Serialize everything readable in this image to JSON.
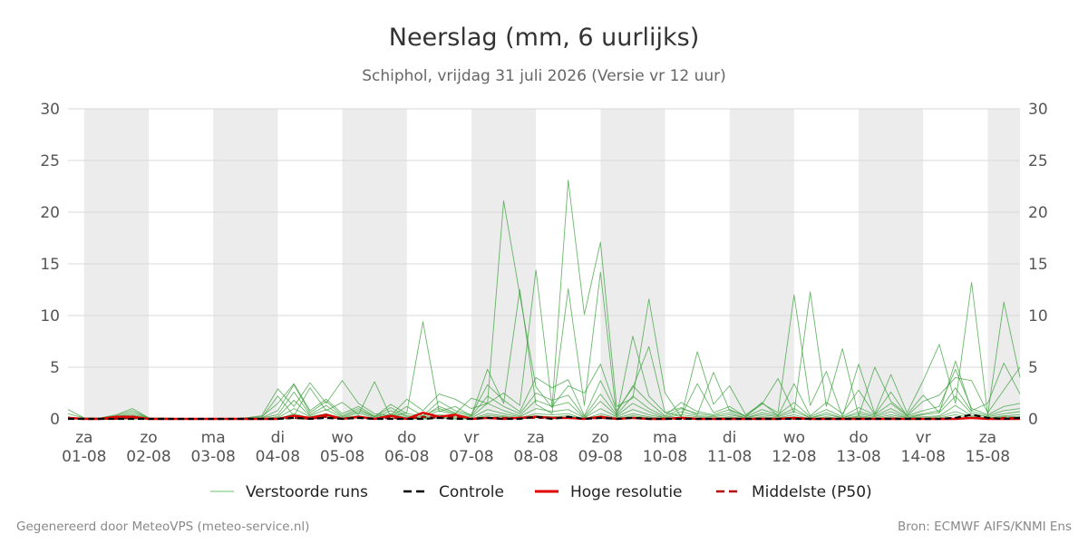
{
  "header": {
    "title": "Neerslag (mm, 6 uurlijks)",
    "subtitle": "Schiphol, vrijdag 31 juli 2026 (Versie vr 12 uur)"
  },
  "footer": {
    "left": "Gegenereerd door MeteoVPS (meteo-service.nl)",
    "right": "Bron: ECMWF AIFS/KNMI Ens"
  },
  "legend": [
    {
      "label": "Verstoorde runs",
      "color": "#4caf50",
      "style": "thin-solid"
    },
    {
      "label": "Controle",
      "color": "#000000",
      "style": "dashed"
    },
    {
      "label": "Hoge resolutie",
      "color": "#e00000",
      "style": "solid"
    },
    {
      "label": "Middelste (P50)",
      "color": "#b00000",
      "style": "dashed"
    }
  ],
  "chart_data": {
    "type": "line",
    "title": "Neerslag (mm, 6 uurlijks)",
    "subtitle": "Schiphol, vrijdag 31 juli 2026 (Versie vr 12 uur)",
    "x_unit": "days, day 0 = za 01-08 00:00",
    "xlim": [
      -0.25,
      14.5
    ],
    "ylim": [
      0,
      30
    ],
    "yticks": [
      0,
      5,
      10,
      15,
      20,
      25,
      30
    ],
    "grid": true,
    "legend_position": "bottom",
    "day_labels": [
      {
        "day": "za",
        "date": "01-08"
      },
      {
        "day": "zo",
        "date": "02-08"
      },
      {
        "day": "ma",
        "date": "03-08"
      },
      {
        "day": "di",
        "date": "04-08"
      },
      {
        "day": "wo",
        "date": "05-08"
      },
      {
        "day": "do",
        "date": "06-08"
      },
      {
        "day": "vr",
        "date": "07-08"
      },
      {
        "day": "za",
        "date": "08-08"
      },
      {
        "day": "zo",
        "date": "09-08"
      },
      {
        "day": "ma",
        "date": "10-08"
      },
      {
        "day": "di",
        "date": "11-08"
      },
      {
        "day": "wo",
        "date": "12-08"
      },
      {
        "day": "do",
        "date": "13-08"
      },
      {
        "day": "vr",
        "date": "14-08"
      },
      {
        "day": "za",
        "date": "15-08"
      }
    ],
    "shaded_days": [
      0,
      2,
      4,
      6,
      8,
      10,
      12,
      14
    ],
    "x": [
      -0.25,
      0,
      0.25,
      0.5,
      0.75,
      1,
      1.25,
      1.5,
      1.75,
      2,
      2.25,
      2.5,
      2.75,
      3,
      3.25,
      3.5,
      3.75,
      4,
      4.25,
      4.5,
      4.75,
      5,
      5.25,
      5.5,
      5.75,
      6,
      6.25,
      6.5,
      6.75,
      7,
      7.25,
      7.5,
      7.75,
      8,
      8.25,
      8.5,
      8.75,
      9,
      9.25,
      9.5,
      9.75,
      10,
      10.25,
      10.5,
      10.75,
      11,
      11.25,
      11.5,
      11.75,
      12,
      12.25,
      12.5,
      12.75,
      13,
      13.25,
      13.5,
      13.75,
      14,
      14.25,
      14.5
    ],
    "series": [
      {
        "role": "member",
        "values": [
          0.9,
          0.1,
          0.1,
          0.4,
          1.0,
          0.1,
          0.1,
          0,
          0,
          0,
          0,
          0.1,
          0.3,
          2.9,
          1.2,
          3.5,
          1.5,
          3.7,
          1.5,
          0.5,
          0.3,
          1.9,
          0.8,
          2.4,
          1.9,
          1.0,
          1.5,
          21.1,
          12.0,
          3.1,
          1.1,
          23.1,
          10.1,
          17.1,
          1.2,
          2.0,
          11.6,
          2.5,
          0.2,
          6.5,
          1.4,
          3.2,
          0.4,
          1.5,
          0.6,
          12.0,
          1.3,
          4.6,
          0.2,
          5.3,
          0.5,
          4.3,
          0.6,
          3.7,
          7.2,
          1.5,
          13.2,
          0.4,
          11.3,
          4.0
        ]
      },
      {
        "role": "member",
        "values": [
          0.1,
          0.1,
          0.1,
          0.3,
          0.8,
          0.1,
          0,
          0,
          0,
          0,
          0,
          0.1,
          0.2,
          1.5,
          3.4,
          0.8,
          1.9,
          0.5,
          1.2,
          0.3,
          0.2,
          0.6,
          9.4,
          0.7,
          1.2,
          0.3,
          4.8,
          1.5,
          12.5,
          1.4,
          0.5,
          12.6,
          1.3,
          14.2,
          0.2,
          8.0,
          2.2,
          0.6,
          1.1,
          0.4,
          4.5,
          0.8,
          0.3,
          1.4,
          3.9,
          0.6,
          12.3,
          1.2,
          6.8,
          0.3,
          5.0,
          1.7,
          0.4,
          2.3,
          0.6,
          5.6,
          0.8,
          1.5,
          5.4,
          2.4
        ]
      },
      {
        "role": "member",
        "values": [
          0.5,
          0.1,
          0.1,
          0.2,
          0.6,
          0.1,
          0,
          0,
          0,
          0,
          0,
          0.1,
          0.1,
          2.2,
          0.3,
          3.0,
          0.8,
          1.6,
          0.4,
          3.6,
          0.2,
          1.2,
          0.3,
          1.0,
          0.5,
          2.0,
          1.5,
          2.5,
          1.3,
          14.4,
          1.2,
          3.2,
          2.5,
          5.3,
          0.8,
          3.0,
          7.0,
          0.6,
          0.3,
          3.4,
          0.6,
          1.2,
          0.2,
          1.6,
          0.3,
          3.4,
          0.3,
          1.6,
          0.5,
          2.8,
          0.4,
          2.6,
          0.3,
          1.7,
          2.3,
          4.0,
          3.7,
          0.6,
          2.8,
          5.0
        ]
      },
      {
        "role": "member",
        "values": [
          0.1,
          0.1,
          0,
          0.2,
          0.4,
          0.1,
          0,
          0,
          0,
          0,
          0,
          0,
          0.1,
          0.8,
          3.3,
          0.6,
          1.7,
          0.3,
          1.0,
          0.2,
          1.4,
          0.5,
          0.3,
          1.7,
          0.8,
          0.4,
          3.3,
          1.8,
          0.7,
          4.0,
          3.0,
          3.8,
          0.3,
          3.7,
          0.6,
          3.2,
          1.6,
          0.3,
          1.6,
          0.7,
          0.4,
          0.9,
          0.2,
          0.9,
          0.4,
          1.6,
          0.2,
          0.9,
          0.2,
          1.1,
          0.4,
          1.5,
          0.3,
          0.8,
          1.2,
          4.8,
          1.0,
          0.4,
          1.2,
          1.5
        ]
      },
      {
        "role": "member",
        "values": [
          0.2,
          0,
          0,
          0.1,
          0.3,
          0,
          0,
          0,
          0,
          0,
          0,
          0,
          0.1,
          0.4,
          2.6,
          0.4,
          1.3,
          0.2,
          0.8,
          0.2,
          1.1,
          0.3,
          0.2,
          1.2,
          0.6,
          0.3,
          2.2,
          1.2,
          0.5,
          2.5,
          1.8,
          2.3,
          0.2,
          2.4,
          0.4,
          2.2,
          1.0,
          0.2,
          1.0,
          0.5,
          0.3,
          0.6,
          0.1,
          0.6,
          0.3,
          1.0,
          0.1,
          0.6,
          0.1,
          0.7,
          0.3,
          1.0,
          0.2,
          0.5,
          0.8,
          3.0,
          0.7,
          0.3,
          0.8,
          1.0
        ]
      },
      {
        "role": "member",
        "values": [
          0,
          0,
          0,
          0.1,
          0.2,
          0,
          0,
          0,
          0,
          0,
          0,
          0,
          0,
          0.2,
          1.8,
          0.3,
          0.9,
          0.1,
          0.6,
          0.1,
          0.8,
          0.2,
          0.1,
          0.8,
          0.4,
          0.2,
          1.5,
          0.8,
          0.3,
          1.8,
          1.2,
          1.6,
          0.1,
          1.7,
          0.3,
          1.5,
          0.7,
          0.1,
          0.7,
          0.3,
          0.2,
          0.4,
          0.1,
          0.4,
          0.2,
          0.7,
          0.1,
          0.4,
          0.1,
          0.5,
          0.2,
          0.7,
          0.1,
          0.4,
          0.6,
          2.2,
          0.5,
          0.2,
          0.5,
          0.7
        ]
      },
      {
        "role": "member",
        "values": [
          0,
          0,
          0,
          0,
          0.1,
          0,
          0,
          0,
          0,
          0,
          0,
          0,
          0,
          0.1,
          1.0,
          0.2,
          0.5,
          0.1,
          0.3,
          0,
          0.5,
          0.1,
          0.1,
          0.4,
          0.2,
          0.1,
          0.9,
          0.5,
          0.2,
          1.0,
          0.7,
          0.9,
          0.1,
          1.0,
          0.2,
          0.9,
          0.4,
          0.1,
          0.4,
          0.2,
          0.1,
          0.2,
          0,
          0.2,
          0.1,
          0.4,
          0,
          0.2,
          0,
          0.3,
          0.1,
          0.4,
          0.1,
          0.2,
          0.3,
          1.3,
          0.3,
          0.1,
          0.3,
          0.4
        ]
      },
      {
        "role": "member",
        "values": [
          0,
          0,
          0,
          0,
          0,
          0,
          0,
          0,
          0,
          0,
          0,
          0,
          0,
          0,
          0.5,
          0.1,
          0.3,
          0,
          0.2,
          0,
          0.3,
          0.1,
          0,
          0.2,
          0.1,
          0,
          0.5,
          0.3,
          0.1,
          0.5,
          0.4,
          0.5,
          0,
          0.5,
          0.1,
          0.5,
          0.2,
          0,
          0.2,
          0.1,
          0,
          0.1,
          0,
          0.1,
          0,
          0.2,
          0,
          0.1,
          0,
          0.2,
          0,
          0.2,
          0,
          0.1,
          0.2,
          0.7,
          0.2,
          0,
          0.2,
          0.2
        ]
      },
      {
        "role": "member",
        "values": [
          0,
          0,
          0,
          0,
          0,
          0,
          0,
          0,
          0,
          0,
          0,
          0,
          0,
          0.1,
          0.3,
          0.1,
          0.2,
          0,
          0.1,
          0,
          0.2,
          0,
          0,
          0.1,
          0,
          0,
          0.3,
          0.2,
          0,
          0.3,
          0.2,
          0.3,
          0,
          0.3,
          0,
          0.3,
          0.1,
          0,
          0.1,
          0,
          0,
          0.1,
          0,
          0.1,
          0,
          0.1,
          0,
          0.1,
          0,
          0.1,
          0,
          0.1,
          0,
          0,
          0.1,
          0.4,
          0.1,
          0,
          0.1,
          0.1
        ]
      },
      {
        "role": "control",
        "values": [
          0,
          0,
          0,
          0,
          0,
          0,
          0,
          0,
          0,
          0,
          0,
          0,
          0,
          0,
          0.1,
          0,
          0.1,
          0,
          0.1,
          0,
          0,
          0,
          0,
          0.1,
          0,
          0,
          0.1,
          0,
          0,
          0.2,
          0,
          0.2,
          0,
          0.1,
          0,
          0.1,
          0,
          0,
          0,
          0,
          0,
          0,
          0,
          0,
          0,
          0,
          0,
          0,
          0,
          0,
          0,
          0,
          0,
          0,
          0,
          0.1,
          0.4,
          0.1,
          0,
          0.1
        ]
      },
      {
        "role": "hires",
        "values": [
          0.1,
          0,
          0,
          0.2,
          0.2,
          0,
          0,
          0,
          0,
          0,
          0,
          0,
          0,
          0,
          0.3,
          0.1,
          0.4,
          0,
          0.2,
          0,
          0.3,
          0,
          0.6,
          0.2,
          0.4,
          0,
          0.1,
          0,
          0.1,
          0.2,
          0.1,
          0.1,
          0,
          0.2,
          0,
          0.1,
          0,
          0,
          0.1,
          0,
          0,
          0,
          0,
          0,
          0,
          0.1,
          0,
          0,
          0,
          0,
          0,
          0,
          0,
          0,
          0,
          0,
          0.1,
          0,
          0,
          0
        ]
      },
      {
        "role": "p50",
        "values": [
          0,
          0,
          0,
          0,
          0.1,
          0,
          0,
          0,
          0,
          0,
          0,
          0,
          0,
          0,
          0.1,
          0,
          0.2,
          0,
          0.1,
          0,
          0.1,
          0,
          0.2,
          0.1,
          0.2,
          0,
          0.1,
          0.1,
          0.1,
          0.1,
          0.1,
          0.1,
          0,
          0.1,
          0,
          0.1,
          0,
          0,
          0,
          0,
          0,
          0,
          0,
          0,
          0,
          0,
          0,
          0,
          0,
          0,
          0,
          0,
          0,
          0,
          0,
          0.1,
          0.1,
          0,
          0.1,
          0.1
        ]
      }
    ]
  }
}
